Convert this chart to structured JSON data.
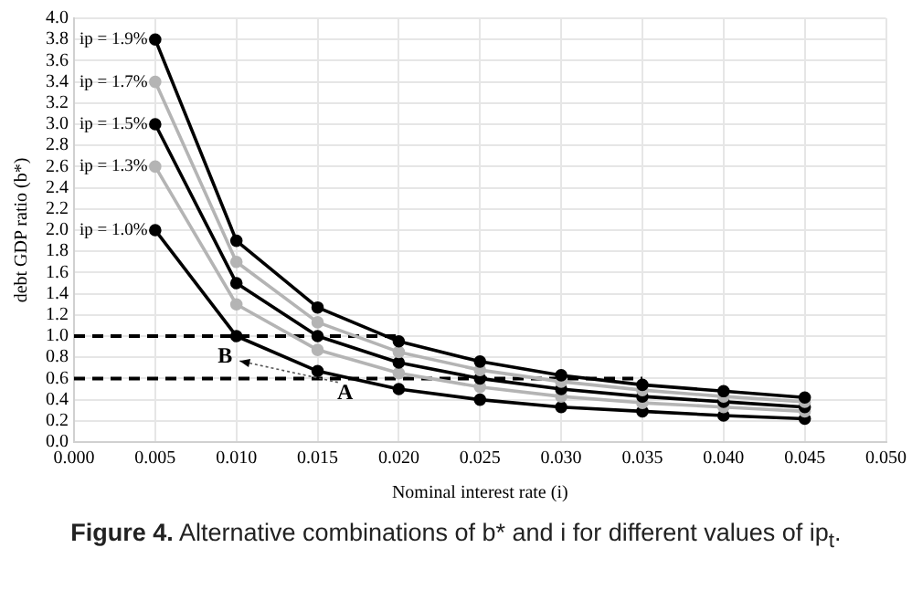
{
  "chart_data": {
    "type": "line",
    "title": "Figure 4. Alternative combinations of b* and i for different values of ip$_{t}$.",
    "xlabel": "Nominal interest rate (i)",
    "ylabel": "debt GDP ratio (b*)",
    "x": [
      0.005,
      0.01,
      0.015,
      0.02,
      0.025,
      0.03,
      0.035,
      0.04,
      0.045
    ],
    "series": [
      {
        "name": "ip = 1.9%",
        "color": "#000000",
        "values": [
          3.8,
          1.9,
          1.27,
          0.95,
          0.76,
          0.63,
          0.54,
          0.48,
          0.42
        ]
      },
      {
        "name": "ip = 1.7%",
        "color": "#b4b4b4",
        "values": [
          3.4,
          1.7,
          1.13,
          0.85,
          0.68,
          0.57,
          0.49,
          0.43,
          0.38
        ]
      },
      {
        "name": "ip = 1.5%",
        "color": "#000000",
        "values": [
          3.0,
          1.5,
          1.0,
          0.75,
          0.6,
          0.5,
          0.43,
          0.38,
          0.33
        ]
      },
      {
        "name": "ip = 1.3%",
        "color": "#b4b4b4",
        "values": [
          2.6,
          1.3,
          0.87,
          0.65,
          0.52,
          0.43,
          0.37,
          0.33,
          0.29
        ]
      },
      {
        "name": "ip = 1.0%",
        "color": "#000000",
        "values": [
          2.0,
          1.0,
          0.67,
          0.5,
          0.4,
          0.33,
          0.29,
          0.25,
          0.22
        ]
      },
      {
        "color": "#000000",
        "x": [
          0,
          0.02
        ],
        "values": [
          1.0,
          1.0
        ],
        "line_style": "dashed",
        "marker": "none"
      },
      {
        "color": "#000000",
        "x": [
          0,
          0.035
        ],
        "values": [
          0.6,
          0.6
        ],
        "line_style": "dashed",
        "marker": "none"
      }
    ],
    "annotations": [
      "B",
      "A"
    ],
    "xlim": [
      0,
      0.05
    ],
    "xticks": [
      {
        "value": 0,
        "label": "0.000"
      },
      {
        "value": 0.005,
        "label": "0.005"
      },
      {
        "value": 0.01,
        "label": "0.010"
      },
      {
        "value": 0.015,
        "label": "0.015"
      },
      {
        "value": 0.02,
        "label": "0.020"
      },
      {
        "value": 0.025,
        "label": "0.025"
      },
      {
        "value": 0.03,
        "label": "0.030"
      },
      {
        "value": 0.035,
        "label": "0.035"
      },
      {
        "value": 0.04,
        "label": "0.040"
      },
      {
        "value": 0.045,
        "label": "0.045"
      },
      {
        "value": 0.05,
        "label": "0.050"
      }
    ],
    "ylim": [
      0,
      4
    ],
    "yticks": [
      {
        "value": 0,
        "label": "0.0"
      },
      {
        "value": 0.2,
        "label": "0.2"
      },
      {
        "value": 0.4,
        "label": "0.4"
      },
      {
        "value": 0.6,
        "label": "0.6"
      },
      {
        "value": 0.8,
        "label": "0.8"
      },
      {
        "value": 1,
        "label": "1.0"
      },
      {
        "value": 1.2,
        "label": "1.2"
      },
      {
        "value": 1.4,
        "label": "1.4"
      },
      {
        "value": 1.6,
        "label": "1.6"
      },
      {
        "value": 1.8,
        "label": "1.8"
      },
      {
        "value": 2,
        "label": "2.0"
      },
      {
        "value": 2.2,
        "label": "2.2"
      },
      {
        "value": 2.4,
        "label": "2.4"
      },
      {
        "value": 2.6,
        "label": "2.6"
      },
      {
        "value": 2.8,
        "label": "2.8"
      },
      {
        "value": 3,
        "label": "3.0"
      },
      {
        "value": 3.2,
        "label": "3.2"
      },
      {
        "value": 3.4,
        "label": "3.4"
      },
      {
        "value": 3.6,
        "label": "3.6"
      },
      {
        "value": 3.8,
        "label": "3.8"
      },
      {
        "value": 4,
        "label": "4.0"
      }
    ],
    "grid": true,
    "legend": false,
    "marker": "circle",
    "line_style": "solid"
  }
}
